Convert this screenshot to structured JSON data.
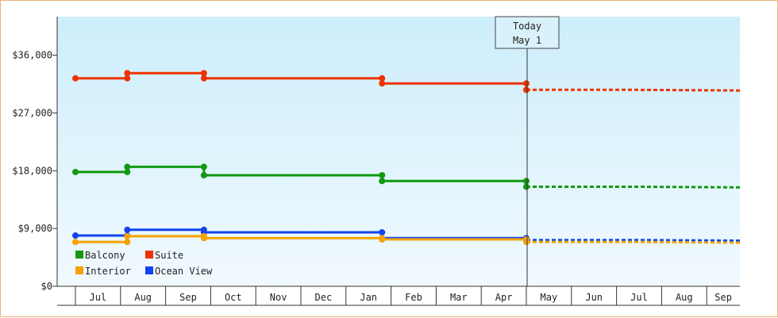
{
  "chart_data": {
    "type": "line",
    "today_marker": {
      "line1": "Today",
      "line2": "May 1"
    },
    "ylim": [
      0,
      42000
    ],
    "y_ticks": [
      {
        "value": 0,
        "label": "$0"
      },
      {
        "value": 9000,
        "label": "$9,000"
      },
      {
        "value": 18000,
        "label": "$18,000"
      },
      {
        "value": 27000,
        "label": "$27,000"
      },
      {
        "value": 36000,
        "label": "$36,000"
      }
    ],
    "x_months": [
      "Jul",
      "Aug",
      "Sep",
      "Oct",
      "Nov",
      "Dec",
      "Jan",
      "Feb",
      "Mar",
      "Apr",
      "May",
      "Jun",
      "Jul",
      "Aug",
      "Sep"
    ],
    "legend": [
      {
        "name": "Balcony",
        "color": "#119911"
      },
      {
        "name": "Suite",
        "color": "#ee3300"
      },
      {
        "name": "Interior",
        "color": "#f5a300"
      },
      {
        "name": "Ocean View",
        "color": "#1144ee"
      }
    ],
    "series": [
      {
        "name": "Suite",
        "color": "#ee3300",
        "history": [
          [
            0,
            32400
          ],
          [
            1.15,
            32400
          ],
          [
            1.15,
            33200
          ],
          [
            2.85,
            33200
          ],
          [
            2.85,
            32400
          ],
          [
            6.8,
            32400
          ],
          [
            6.8,
            31600
          ],
          [
            10.0,
            31600
          ],
          [
            10.0,
            30600
          ]
        ],
        "forecast": [
          [
            10.0,
            30600
          ],
          [
            12.5,
            30600
          ],
          [
            15.3,
            30500
          ]
        ]
      },
      {
        "name": "Balcony",
        "color": "#119911",
        "history": [
          [
            0,
            17800
          ],
          [
            1.15,
            17800
          ],
          [
            1.15,
            18600
          ],
          [
            2.85,
            18600
          ],
          [
            2.85,
            17300
          ],
          [
            6.8,
            17300
          ],
          [
            6.8,
            16400
          ],
          [
            10.0,
            16400
          ],
          [
            10.0,
            15500
          ]
        ],
        "forecast": [
          [
            10.0,
            15500
          ],
          [
            12.5,
            15500
          ],
          [
            15.3,
            15400
          ]
        ]
      },
      {
        "name": "Ocean View",
        "color": "#1144ee",
        "history": [
          [
            0,
            7900
          ],
          [
            1.15,
            7900
          ],
          [
            1.15,
            8800
          ],
          [
            2.85,
            8800
          ],
          [
            2.85,
            8400
          ],
          [
            6.8,
            8400
          ],
          [
            6.8,
            7500
          ],
          [
            10.0,
            7500
          ],
          [
            10.0,
            7200
          ]
        ],
        "forecast": [
          [
            10.0,
            7200
          ],
          [
            12.5,
            7200
          ],
          [
            15.3,
            7100
          ]
        ]
      },
      {
        "name": "Interior",
        "color": "#f5a300",
        "history": [
          [
            0,
            6900
          ],
          [
            1.15,
            6900
          ],
          [
            1.15,
            7800
          ],
          [
            2.85,
            7800
          ],
          [
            2.85,
            7500
          ],
          [
            6.8,
            7500
          ],
          [
            6.8,
            7300
          ],
          [
            10.0,
            7300
          ],
          [
            10.0,
            6900
          ]
        ],
        "forecast": [
          [
            10.0,
            6900
          ],
          [
            12.5,
            6900
          ],
          [
            15.3,
            6800
          ]
        ]
      }
    ]
  }
}
